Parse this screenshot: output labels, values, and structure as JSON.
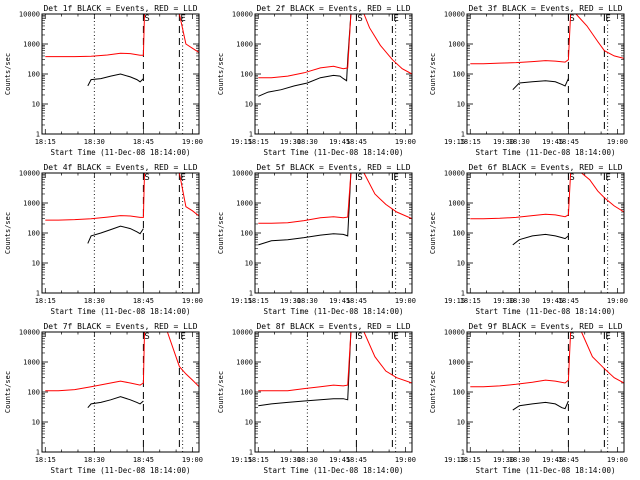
{
  "figure": {
    "background": "#ffffff",
    "series_colors": {
      "events": "#000000",
      "lld": "#ff0000"
    }
  },
  "chart_data": [
    {
      "type": "line",
      "title": "Det 1f BLACK = Events, RED = LLD",
      "xlabel": "Start Time (11-Dec-08 18:14:00)",
      "ylabel": "Counts/sec",
      "yscale": "log",
      "ylim": [
        1,
        10000
      ],
      "xlim": [
        0,
        2880
      ],
      "x_ticks": [
        "18:15",
        "18:30",
        "18:45",
        "19:00",
        "19:15",
        "19:30",
        "19:45"
      ],
      "y_ticks": [
        "1",
        "10",
        "100",
        "1000",
        "10000"
      ],
      "markers": [
        {
          "label": "",
          "style": "dotted",
          "x": 960
        },
        {
          "label": "S",
          "style": "dashed",
          "x": 1860
        },
        {
          "label": "E",
          "style": "dashed",
          "x": 2520
        },
        {
          "label": "",
          "style": "dotted",
          "x": 2580
        }
      ],
      "series": [
        {
          "color": "black",
          "x": [
            840,
            900,
            1080,
            1260,
            1440,
            1620,
            1740,
            1800,
            1860
          ],
          "values": [
            40,
            65,
            70,
            85,
            100,
            80,
            65,
            55,
            70
          ]
        },
        {
          "color": "red",
          "x": [
            60,
            300,
            600,
            900,
            1200,
            1440,
            1620,
            1800,
            1860,
            1880,
            2520,
            2640,
            2760,
            2880
          ],
          "values": [
            380,
            380,
            380,
            390,
            430,
            490,
            480,
            420,
            420,
            10000,
            10000,
            1000,
            720,
            520
          ]
        }
      ]
    },
    {
      "type": "line",
      "title": "Det 2f BLACK = Events, RED = LLD",
      "xlabel": "Start Time (11-Dec-08 18:14:00)",
      "ylabel": "Counts/sec",
      "yscale": "log",
      "ylim": [
        1,
        10000
      ],
      "xlim": [
        0,
        2880
      ],
      "x_ticks": [
        "18:15",
        "18:30",
        "18:45",
        "19:00",
        "19:15",
        "19:30",
        "19:45"
      ],
      "y_ticks": [
        "1",
        "10",
        "100",
        "1000",
        "10000"
      ],
      "markers": [
        {
          "label": "",
          "style": "dotted",
          "x": 960
        },
        {
          "label": "S",
          "style": "dashed",
          "x": 1860
        },
        {
          "label": "E",
          "style": "dashed",
          "x": 2520
        },
        {
          "label": "",
          "style": "dotted",
          "x": 2580
        }
      ],
      "series": [
        {
          "color": "black",
          "x": [
            60,
            240,
            480,
            720,
            960,
            1200,
            1440,
            1560,
            1620,
            1680,
            1700,
            1760,
            1860
          ],
          "values": [
            18,
            25,
            30,
            40,
            50,
            75,
            90,
            85,
            70,
            60,
            300,
            10000,
            10000
          ]
        },
        {
          "color": "red",
          "x": [
            60,
            300,
            600,
            900,
            1200,
            1440,
            1620,
            1700,
            1760,
            2000,
            2100,
            2300,
            2520,
            2700,
            2880
          ],
          "values": [
            75,
            75,
            85,
            110,
            160,
            180,
            150,
            160,
            10000,
            10000,
            3500,
            900,
            300,
            150,
            100
          ]
        }
      ]
    },
    {
      "type": "line",
      "title": "Det 3f BLACK = Events, RED = LLD",
      "xlabel": "Start Time (11-Dec-08 18:14:00)",
      "ylabel": "Counts/sec",
      "yscale": "log",
      "ylim": [
        1,
        10000
      ],
      "xlim": [
        0,
        2880
      ],
      "x_ticks": [
        "18:15",
        "18:30",
        "18:45",
        "19:00",
        "19:15",
        "19:30",
        "19:45"
      ],
      "y_ticks": [
        "1",
        "10",
        "100",
        "1000",
        "10000"
      ],
      "markers": [
        {
          "label": "",
          "style": "dotted",
          "x": 960
        },
        {
          "label": "S",
          "style": "dashed",
          "x": 1860
        },
        {
          "label": "E",
          "style": "dashed",
          "x": 2520
        },
        {
          "label": "",
          "style": "dotted",
          "x": 2580
        }
      ],
      "series": [
        {
          "color": "black",
          "x": [
            840,
            960,
            1200,
            1440,
            1620,
            1740,
            1800,
            1860
          ],
          "values": [
            30,
            50,
            55,
            60,
            55,
            45,
            40,
            70
          ]
        },
        {
          "color": "red",
          "x": [
            60,
            300,
            600,
            900,
            1200,
            1440,
            1620,
            1800,
            1860,
            1900,
            2000,
            2200,
            2400,
            2520,
            2700,
            2880
          ],
          "values": [
            220,
            220,
            230,
            240,
            260,
            280,
            270,
            250,
            300,
            10000,
            10000,
            4000,
            1200,
            600,
            400,
            330
          ]
        }
      ]
    },
    {
      "type": "line",
      "title": "Det 4f BLACK = Events, RED = LLD",
      "xlabel": "Start Time (11-Dec-08 18:14:00)",
      "ylabel": "Counts/sec",
      "yscale": "log",
      "ylim": [
        1,
        10000
      ],
      "xlim": [
        0,
        2880
      ],
      "x_ticks": [
        "18:15",
        "18:30",
        "18:45",
        "19:00",
        "19:15",
        "19:30",
        "19:45"
      ],
      "y_ticks": [
        "1",
        "10",
        "100",
        "1000",
        "10000"
      ],
      "markers": [
        {
          "label": "",
          "style": "dotted",
          "x": 960
        },
        {
          "label": "S",
          "style": "dashed",
          "x": 1860
        },
        {
          "label": "E",
          "style": "dashed",
          "x": 2520
        },
        {
          "label": "",
          "style": "dotted",
          "x": 2580
        }
      ],
      "series": [
        {
          "color": "black",
          "x": [
            840,
            900,
            1080,
            1260,
            1440,
            1620,
            1740,
            1800,
            1860
          ],
          "values": [
            45,
            80,
            100,
            130,
            170,
            140,
            110,
            95,
            140
          ]
        },
        {
          "color": "red",
          "x": [
            60,
            300,
            600,
            900,
            1200,
            1440,
            1620,
            1800,
            1860,
            1880,
            2520,
            2640,
            2760,
            2880
          ],
          "values": [
            270,
            270,
            280,
            300,
            340,
            380,
            370,
            330,
            330,
            10000,
            10000,
            750,
            550,
            370
          ]
        }
      ]
    },
    {
      "type": "line",
      "title": "Det 5f BLACK = Events, RED = LLD",
      "xlabel": "Start Time (11-Dec-08 18:14:00)",
      "ylabel": "Counts/sec",
      "yscale": "log",
      "ylim": [
        1,
        10000
      ],
      "xlim": [
        0,
        2880
      ],
      "x_ticks": [
        "18:15",
        "18:30",
        "18:45",
        "19:00",
        "19:15",
        "19:30",
        "19:45"
      ],
      "y_ticks": [
        "1",
        "10",
        "100",
        "1000",
        "10000"
      ],
      "markers": [
        {
          "label": "",
          "style": "dotted",
          "x": 960
        },
        {
          "label": "S",
          "style": "dashed",
          "x": 1860
        },
        {
          "label": "E",
          "style": "dashed",
          "x": 2520
        },
        {
          "label": "",
          "style": "dotted",
          "x": 2580
        }
      ],
      "series": [
        {
          "color": "black",
          "x": [
            60,
            300,
            600,
            900,
            1200,
            1440,
            1620,
            1700,
            1760,
            1860
          ],
          "values": [
            40,
            55,
            60,
            70,
            85,
            95,
            90,
            80,
            10000,
            10000
          ]
        },
        {
          "color": "red",
          "x": [
            60,
            300,
            600,
            900,
            1200,
            1440,
            1620,
            1700,
            1760,
            2000,
            2200,
            2400,
            2600,
            2880
          ],
          "values": [
            210,
            210,
            220,
            260,
            320,
            350,
            320,
            340,
            10000,
            10000,
            2000,
            900,
            500,
            300
          ]
        }
      ]
    },
    {
      "type": "line",
      "title": "Det 6f BLACK = Events, RED = LLD",
      "xlabel": "Start Time (11-Dec-08 18:14:00)",
      "ylabel": "Counts/sec",
      "yscale": "log",
      "ylim": [
        1,
        10000
      ],
      "xlim": [
        0,
        2880
      ],
      "x_ticks": [
        "18:15",
        "18:30",
        "18:45",
        "19:00",
        "19:15",
        "19:30",
        "19:45"
      ],
      "y_ticks": [
        "1",
        "10",
        "100",
        "1000",
        "10000"
      ],
      "markers": [
        {
          "label": "",
          "style": "dotted",
          "x": 960
        },
        {
          "label": "S",
          "style": "dashed",
          "x": 1860
        },
        {
          "label": "E",
          "style": "dashed",
          "x": 2520
        },
        {
          "label": "",
          "style": "dotted",
          "x": 2580
        }
      ],
      "series": [
        {
          "color": "black",
          "x": [
            840,
            960,
            1200,
            1440,
            1620,
            1740,
            1800,
            1860
          ],
          "values": [
            40,
            60,
            80,
            90,
            80,
            70,
            65,
            80
          ]
        },
        {
          "color": "red",
          "x": [
            60,
            300,
            600,
            900,
            1200,
            1440,
            1620,
            1800,
            1860,
            1900,
            2100,
            2250,
            2400,
            2520,
            2700,
            2880
          ],
          "values": [
            300,
            300,
            310,
            330,
            380,
            420,
            400,
            350,
            400,
            10000,
            10000,
            6000,
            2500,
            1500,
            800,
            500
          ]
        }
      ]
    },
    {
      "type": "line",
      "title": "Det 7f BLACK = Events, RED = LLD",
      "xlabel": "Start Time (11-Dec-08 18:14:00)",
      "ylabel": "Counts/sec",
      "yscale": "log",
      "ylim": [
        1,
        10000
      ],
      "xlim": [
        0,
        2880
      ],
      "x_ticks": [
        "18:15",
        "18:30",
        "18:45",
        "19:00",
        "19:15",
        "19:30",
        "19:45"
      ],
      "y_ticks": [
        "1",
        "10",
        "100",
        "1000",
        "10000"
      ],
      "markers": [
        {
          "label": "",
          "style": "dotted",
          "x": 960
        },
        {
          "label": "S",
          "style": "dashed",
          "x": 1860
        },
        {
          "label": "E",
          "style": "dashed",
          "x": 2520
        },
        {
          "label": "",
          "style": "dotted",
          "x": 2580
        }
      ],
      "series": [
        {
          "color": "black",
          "x": [
            840,
            900,
            1080,
            1260,
            1440,
            1620,
            1740,
            1800,
            1860
          ],
          "values": [
            30,
            40,
            45,
            55,
            70,
            55,
            45,
            40,
            50
          ]
        },
        {
          "color": "red",
          "x": [
            60,
            300,
            600,
            900,
            1200,
            1440,
            1620,
            1800,
            1860,
            1880,
            2300,
            2520,
            2640,
            2760,
            2880
          ],
          "values": [
            110,
            110,
            120,
            150,
            190,
            230,
            200,
            170,
            200,
            10000,
            10000,
            700,
            400,
            250,
            150
          ]
        }
      ]
    },
    {
      "type": "line",
      "title": "Det 8f BLACK = Events, RED = LLD",
      "xlabel": "Start Time (11-Dec-08 18:14:00)",
      "ylabel": "Counts/sec",
      "yscale": "log",
      "ylim": [
        1,
        10000
      ],
      "xlim": [
        0,
        2880
      ],
      "x_ticks": [
        "18:15",
        "18:30",
        "18:45",
        "19:00",
        "19:15",
        "19:30",
        "19:45"
      ],
      "y_ticks": [
        "1",
        "10",
        "100",
        "1000",
        "10000"
      ],
      "markers": [
        {
          "label": "",
          "style": "dotted",
          "x": 960
        },
        {
          "label": "S",
          "style": "dashed",
          "x": 1860
        },
        {
          "label": "E",
          "style": "dashed",
          "x": 2520
        },
        {
          "label": "",
          "style": "dotted",
          "x": 2580
        }
      ],
      "series": [
        {
          "color": "black",
          "x": [
            60,
            300,
            600,
            900,
            1200,
            1440,
            1620,
            1700,
            1760,
            1860
          ],
          "values": [
            35,
            40,
            45,
            50,
            55,
            60,
            60,
            55,
            10000,
            10000
          ]
        },
        {
          "color": "red",
          "x": [
            60,
            300,
            600,
            900,
            1200,
            1440,
            1620,
            1700,
            1760,
            2000,
            2200,
            2400,
            2600,
            2880
          ],
          "values": [
            110,
            110,
            110,
            130,
            150,
            170,
            160,
            170,
            10000,
            10000,
            1500,
            500,
            300,
            200
          ]
        }
      ]
    },
    {
      "type": "line",
      "title": "Det 9f BLACK = Events, RED = LLD",
      "xlabel": "Start Time (11-Dec-08 18:14:00)",
      "ylabel": "Counts/sec",
      "yscale": "log",
      "ylim": [
        1,
        10000
      ],
      "xlim": [
        0,
        2880
      ],
      "x_ticks": [
        "18:15",
        "18:30",
        "18:45",
        "19:00",
        "19:15",
        "19:30",
        "19:45"
      ],
      "y_ticks": [
        "1",
        "10",
        "100",
        "1000",
        "10000"
      ],
      "markers": [
        {
          "label": "",
          "style": "dotted",
          "x": 960
        },
        {
          "label": "S",
          "style": "dashed",
          "x": 1860
        },
        {
          "label": "E",
          "style": "dashed",
          "x": 2520
        },
        {
          "label": "",
          "style": "dotted",
          "x": 2580
        }
      ],
      "series": [
        {
          "color": "black",
          "x": [
            840,
            960,
            1200,
            1440,
            1620,
            1740,
            1800,
            1860
          ],
          "values": [
            25,
            35,
            40,
            45,
            40,
            30,
            28,
            50
          ]
        },
        {
          "color": "red",
          "x": [
            60,
            300,
            600,
            900,
            1200,
            1440,
            1620,
            1800,
            1860,
            1900,
            2100,
            2300,
            2520,
            2700,
            2880
          ],
          "values": [
            150,
            150,
            160,
            180,
            210,
            250,
            230,
            200,
            250,
            10000,
            10000,
            1500,
            600,
            300,
            200
          ]
        }
      ]
    }
  ]
}
